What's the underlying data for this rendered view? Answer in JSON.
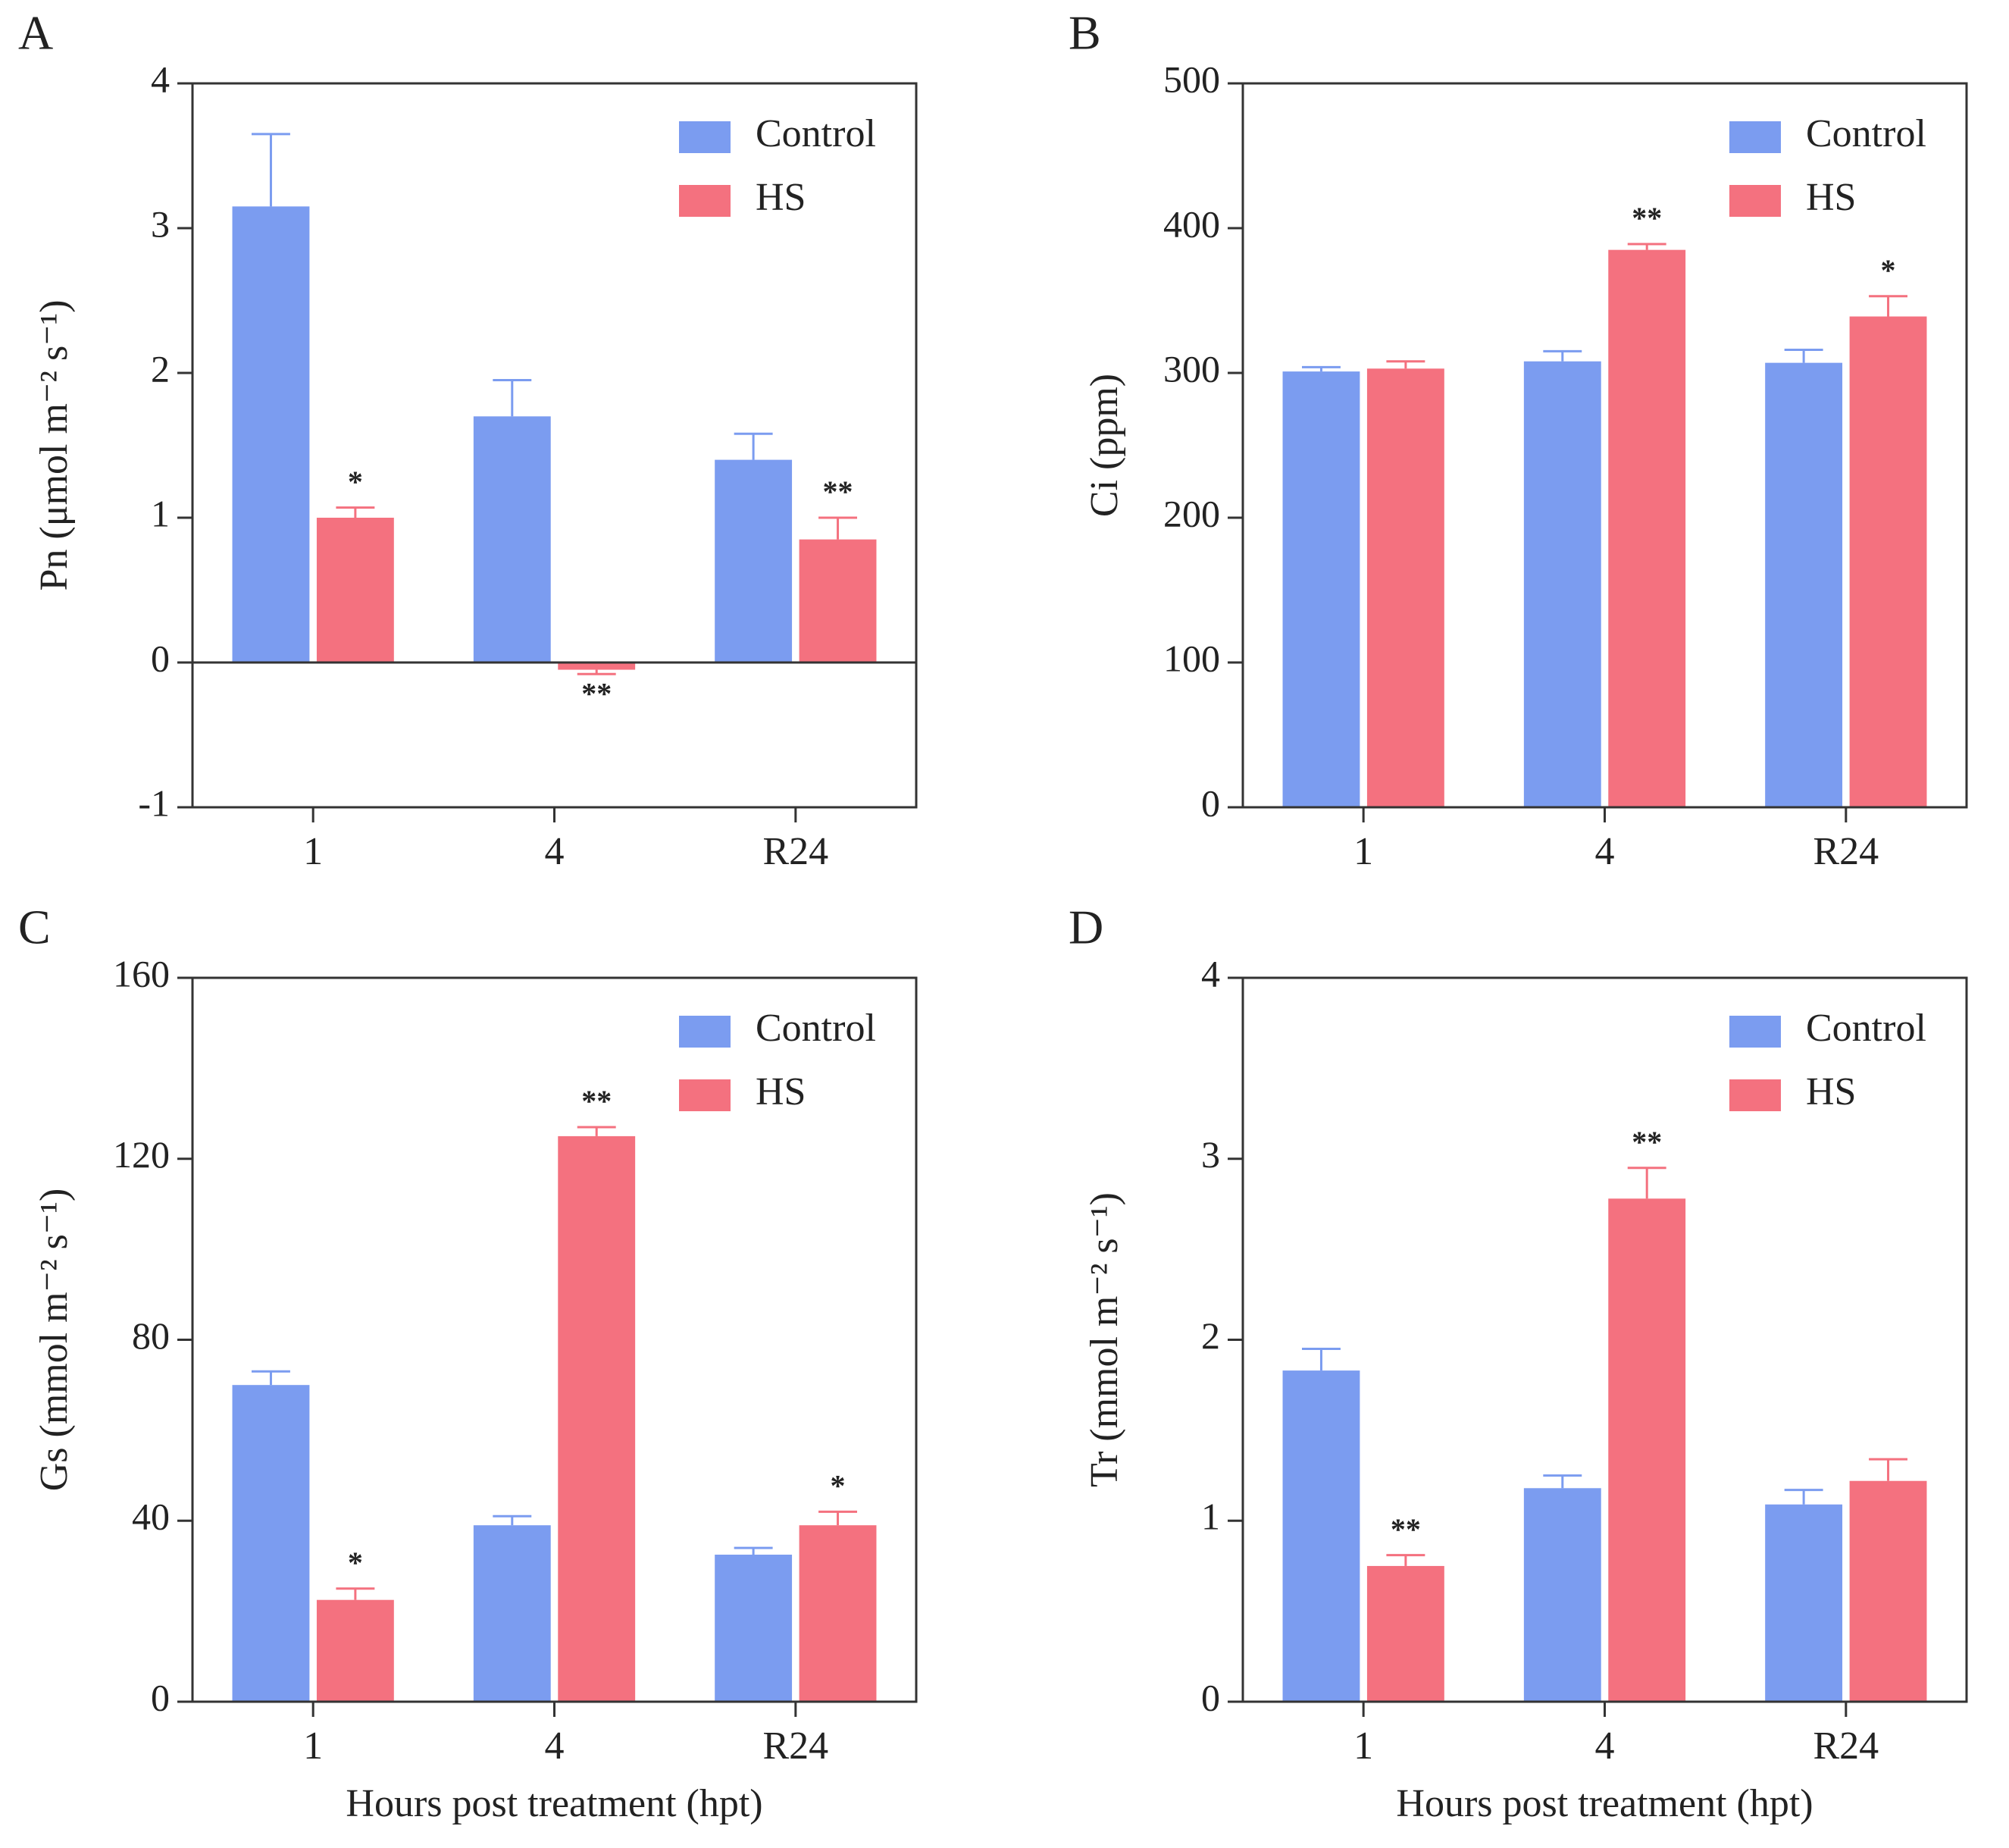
{
  "chart_data": [
    {
      "type": "bar",
      "panel": "A",
      "ylabel": "Pn (μmol m⁻² s⁻¹)",
      "categories": [
        "1",
        "4",
        "R24"
      ],
      "series": [
        {
          "name": "Control",
          "color": "#7b9cf0",
          "values": [
            3.15,
            1.7,
            1.4
          ],
          "errors": [
            0.5,
            0.25,
            0.18
          ],
          "annotations": [
            null,
            null,
            null
          ]
        },
        {
          "name": "HS",
          "color": "#f4717f",
          "values": [
            1.0,
            -0.05,
            0.85
          ],
          "errors": [
            0.07,
            0.03,
            0.15
          ],
          "annotations": [
            "*",
            "**",
            "**"
          ]
        }
      ],
      "ylim": [
        -1,
        4
      ],
      "yticks": [
        -1,
        0,
        1,
        2,
        3,
        4
      ]
    },
    {
      "type": "bar",
      "panel": "B",
      "ylabel": "Ci (ppm)",
      "categories": [
        "1",
        "4",
        "R24"
      ],
      "series": [
        {
          "name": "Control",
          "color": "#7b9cf0",
          "values": [
            301,
            308,
            307
          ],
          "errors": [
            3,
            7,
            9
          ],
          "annotations": [
            null,
            null,
            null
          ]
        },
        {
          "name": "HS",
          "color": "#f4717f",
          "values": [
            303,
            385,
            339
          ],
          "errors": [
            5,
            4,
            14
          ],
          "annotations": [
            null,
            "**",
            "*"
          ]
        }
      ],
      "ylim": [
        0,
        500
      ],
      "yticks": [
        0,
        100,
        200,
        300,
        400,
        500
      ]
    },
    {
      "type": "bar",
      "panel": "C",
      "ylabel": "Gs (mmol m⁻² s⁻¹)",
      "xlabel": "Hours post treatment (hpt)",
      "categories": [
        "1",
        "4",
        "R24"
      ],
      "series": [
        {
          "name": "Control",
          "color": "#7b9cf0",
          "values": [
            70,
            39,
            32.5
          ],
          "errors": [
            3,
            2,
            1.5
          ],
          "annotations": [
            null,
            null,
            null
          ]
        },
        {
          "name": "HS",
          "color": "#f4717f",
          "values": [
            22.5,
            125,
            39
          ],
          "errors": [
            2.5,
            2,
            3
          ],
          "annotations": [
            "*",
            "**",
            "*"
          ]
        }
      ],
      "ylim": [
        0,
        160
      ],
      "yticks": [
        0,
        40,
        80,
        120,
        160
      ]
    },
    {
      "type": "bar",
      "panel": "D",
      "ylabel": "Tr (mmol m⁻² s⁻¹)",
      "xlabel": "Hours post treatment (hpt)",
      "categories": [
        "1",
        "4",
        "R24"
      ],
      "series": [
        {
          "name": "Control",
          "color": "#7b9cf0",
          "values": [
            1.83,
            1.18,
            1.09
          ],
          "errors": [
            0.12,
            0.07,
            0.08
          ],
          "annotations": [
            null,
            null,
            null
          ]
        },
        {
          "name": "HS",
          "color": "#f4717f",
          "values": [
            0.75,
            2.78,
            1.22
          ],
          "errors": [
            0.06,
            0.17,
            0.12
          ],
          "annotations": [
            "**",
            "**",
            null
          ]
        }
      ],
      "ylim": [
        0,
        4
      ],
      "yticks": [
        0,
        1,
        2,
        3,
        4
      ]
    }
  ]
}
